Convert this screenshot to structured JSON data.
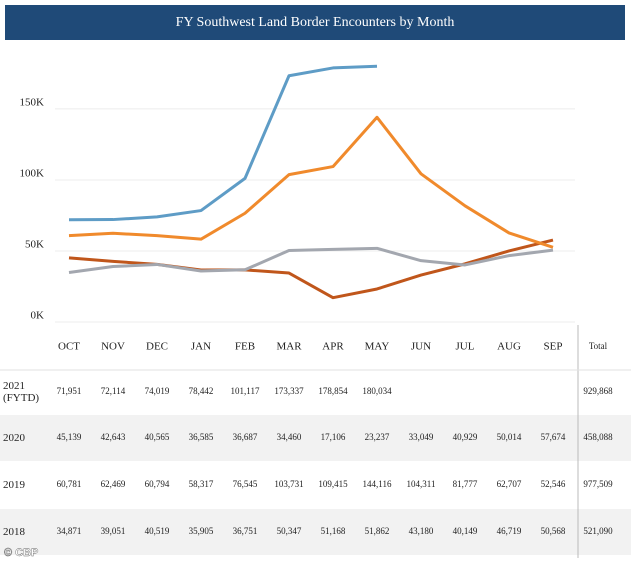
{
  "chart_data": {
    "type": "line",
    "title": "FY Southwest Land Border Encounters by Month",
    "categories": [
      "OCT",
      "NOV",
      "DEC",
      "JAN",
      "FEB",
      "MAR",
      "APR",
      "MAY",
      "JUN",
      "JUL",
      "AUG",
      "SEP"
    ],
    "total_header": "Total",
    "ylim": [
      0,
      195000
    ],
    "yticks": [
      {
        "value": 0,
        "label": "0K"
      },
      {
        "value": 50000,
        "label": "50K"
      },
      {
        "value": 100000,
        "label": "100K"
      },
      {
        "value": 150000,
        "label": "150K"
      }
    ],
    "grid": true,
    "series": [
      {
        "name": "2021 (FYTD)",
        "color": "#5e9cc6",
        "values": [
          71951,
          72114,
          74019,
          78442,
          101117,
          173337,
          178854,
          180034,
          null,
          null,
          null,
          null
        ],
        "value_labels": [
          "71,951",
          "72,114",
          "74,019",
          "78,442",
          "101,117",
          "173,337",
          "178,854",
          "180,034",
          null,
          null,
          null,
          null
        ],
        "total": "929,868"
      },
      {
        "name": "2020",
        "color": "#c0561b",
        "values": [
          45139,
          42643,
          40565,
          36585,
          36687,
          34460,
          17106,
          23237,
          33049,
          40929,
          50014,
          57674
        ],
        "value_labels": [
          "45,139",
          "42,643",
          "40,565",
          "36,585",
          "36,687",
          "34,460",
          "17,106",
          "23,237",
          "33,049",
          "40,929",
          "50,014",
          "57,674"
        ],
        "total": "458,088"
      },
      {
        "name": "2019",
        "color": "#f08a2c",
        "values": [
          60781,
          62469,
          60794,
          58317,
          76545,
          103731,
          109415,
          144116,
          104311,
          81777,
          62707,
          52546
        ],
        "value_labels": [
          "60,781",
          "62,469",
          "60,794",
          "58,317",
          "76,545",
          "103,731",
          "109,415",
          "144,116",
          "104,311",
          "81,777",
          "62,707",
          "52,546"
        ],
        "total": "977,509"
      },
      {
        "name": "2018",
        "color": "#a3a7af",
        "values": [
          34871,
          39051,
          40519,
          35905,
          36751,
          50347,
          51168,
          51862,
          43180,
          40149,
          46719,
          50568
        ],
        "value_labels": [
          "34,871",
          "39,051",
          "40,519",
          "35,905",
          "36,751",
          "50,347",
          "51,168",
          "51,862",
          "43,180",
          "40,149",
          "46,719",
          "50,568"
        ],
        "total": "521,090"
      }
    ],
    "credit": "© CBP"
  }
}
